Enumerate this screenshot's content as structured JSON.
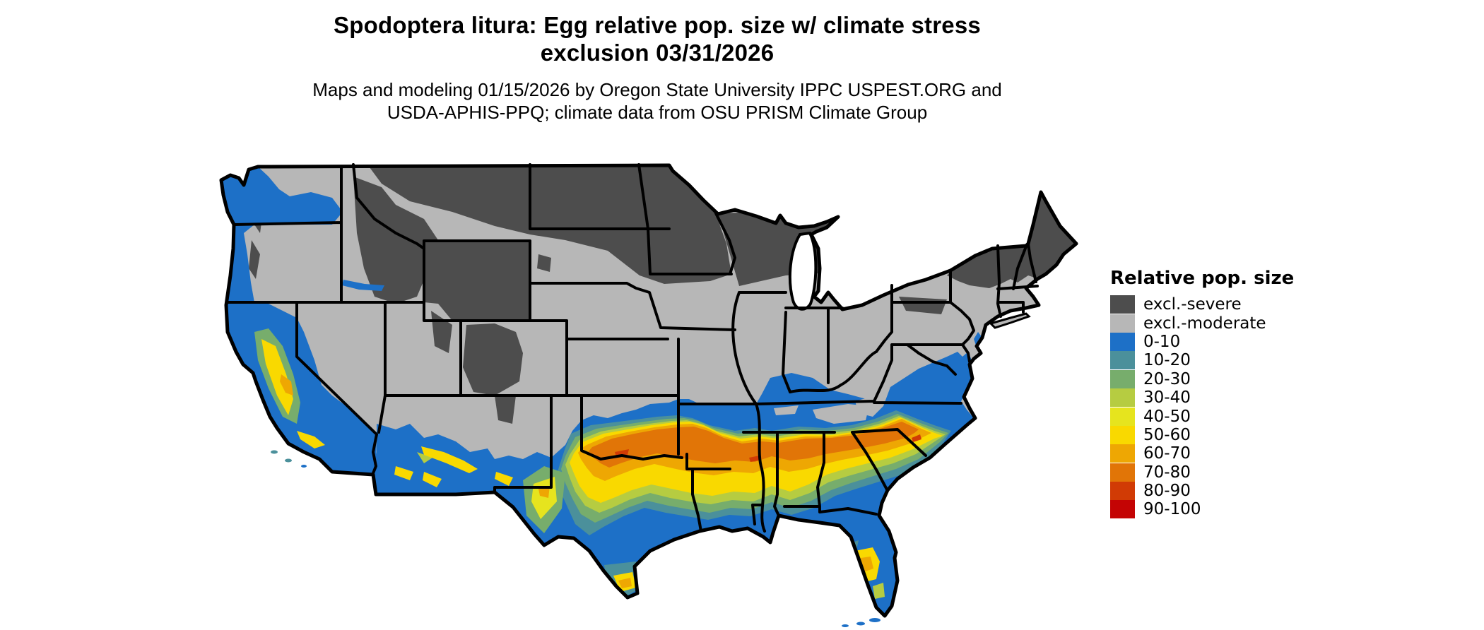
{
  "header": {
    "title_line1": "Spodoptera litura: Egg relative pop. size w/ climate stress",
    "title_line2": "exclusion 03/31/2026",
    "subtitle_line1": "Maps and modeling 01/15/2026 by Oregon State University IPPC USPEST.ORG and",
    "subtitle_line2": "USDA-APHIS-PPQ; climate data from OSU PRISM Climate Group"
  },
  "legend": {
    "title": "Relative pop. size",
    "items": [
      {
        "key": "excl_severe",
        "label": "excl.-severe",
        "color": "#4d4d4d"
      },
      {
        "key": "excl_moderate",
        "label": "excl.-moderate",
        "color": "#b7b7b7"
      },
      {
        "key": "r0_10",
        "label": "0-10",
        "color": "#1d70c7"
      },
      {
        "key": "r10_20",
        "label": "10-20",
        "color": "#4b909b"
      },
      {
        "key": "r20_30",
        "label": "20-30",
        "color": "#77ad6c"
      },
      {
        "key": "r30_40",
        "label": "30-40",
        "color": "#b6cc41"
      },
      {
        "key": "r40_50",
        "label": "40-50",
        "color": "#e6e41e"
      },
      {
        "key": "r50_60",
        "label": "50-60",
        "color": "#f9d900"
      },
      {
        "key": "r60_70",
        "label": "60-70",
        "color": "#eea703"
      },
      {
        "key": "r70_80",
        "label": "70-80",
        "color": "#e17507"
      },
      {
        "key": "r80_90",
        "label": "80-90",
        "color": "#d13b05"
      },
      {
        "key": "r90_100",
        "label": "90-100",
        "color": "#c40404"
      }
    ]
  },
  "map": {
    "background_color": "#ffffff",
    "border_color": "#000000",
    "water_color": "#ffffff"
  }
}
